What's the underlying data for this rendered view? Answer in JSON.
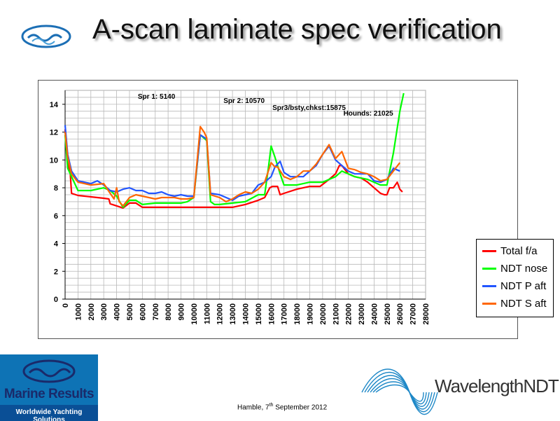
{
  "slide": {
    "title": "A-scan laminate spec verification",
    "footer": {
      "prefix": "Hamble, 7",
      "sup": "th",
      "suffix": " September 2012"
    }
  },
  "logos": {
    "marine_results": {
      "name": "Marine Results",
      "tagline": "Worldwide Yachting Solutions"
    },
    "wavelength": {
      "name": "WavelengthNDT"
    }
  },
  "chart_data": {
    "type": "line",
    "title": "",
    "xlabel": "",
    "ylabel": "",
    "xlim": [
      0,
      28000
    ],
    "ylim": [
      0,
      15
    ],
    "x_ticks": [
      0,
      1000,
      2000,
      3000,
      4000,
      5000,
      6000,
      7000,
      8000,
      9000,
      10000,
      11000,
      12000,
      13000,
      14000,
      15000,
      16000,
      17000,
      18000,
      19000,
      20000,
      21000,
      22000,
      23000,
      24000,
      25000,
      26000,
      27000,
      28000
    ],
    "y_ticks": [
      0,
      2,
      4,
      6,
      8,
      10,
      12,
      14
    ],
    "grid": true,
    "legend_position": "right",
    "annotations": [
      {
        "text": "Spr 1: 5140",
        "x": 7100,
        "y": 14.4
      },
      {
        "text": "Spr 2: 10570",
        "x": 13900,
        "y": 14.1
      },
      {
        "text": "Spr3/bsty,chkst:15875",
        "x": 18950,
        "y": 13.6
      },
      {
        "text": "Hounds: 21025",
        "x": 23550,
        "y": 13.2
      }
    ],
    "series": [
      {
        "name": "Total f/a",
        "color": "#ff0000",
        "x": [
          0,
          200,
          400,
          500,
          1000,
          2000,
          3000,
          3400,
          3500,
          4000,
          4500,
          5000,
          5500,
          6000,
          7000,
          8000,
          9000,
          10000,
          11000,
          12000,
          13000,
          14000,
          15000,
          15500,
          15900,
          16100,
          16500,
          16700,
          17000,
          18000,
          19000,
          19800,
          20500,
          21000,
          21300,
          21500,
          22000,
          22500,
          23000,
          23500,
          24000,
          24500,
          24800,
          25000,
          25200,
          25500,
          25800,
          26000,
          26200
        ],
        "y": [
          12.2,
          9.8,
          9.0,
          7.6,
          7.45,
          7.35,
          7.25,
          7.2,
          6.85,
          6.7,
          6.55,
          6.9,
          6.9,
          6.6,
          6.6,
          6.6,
          6.6,
          6.6,
          6.6,
          6.6,
          6.6,
          6.8,
          7.1,
          7.3,
          8.0,
          8.1,
          8.1,
          7.5,
          7.6,
          7.9,
          8.1,
          8.1,
          8.6,
          9.0,
          9.6,
          9.6,
          9.0,
          8.8,
          8.7,
          8.4,
          8.0,
          7.6,
          7.5,
          7.5,
          8.0,
          8.0,
          8.4,
          7.9,
          7.7
        ]
      },
      {
        "name": "NDT nose",
        "color": "#00ff00",
        "x": [
          0,
          200,
          500,
          1000,
          2000,
          3000,
          3500,
          4000,
          4300,
          4500,
          5000,
          5500,
          6000,
          7000,
          8000,
          9000,
          9500,
          10000,
          10500,
          11000,
          11300,
          11600,
          12000,
          13000,
          14000,
          15000,
          15500,
          15800,
          16000,
          16300,
          16700,
          17000,
          17500,
          18000,
          19000,
          20000,
          21000,
          21500,
          22000,
          22500,
          23000,
          23500,
          24000,
          24500,
          25000,
          25500,
          26000,
          26300
        ],
        "y": [
          11.8,
          9.4,
          8.8,
          7.8,
          7.8,
          8.0,
          7.8,
          7.4,
          6.9,
          6.6,
          7.1,
          7.1,
          6.8,
          6.9,
          6.9,
          6.9,
          7.0,
          7.3,
          11.8,
          11.4,
          7.0,
          6.8,
          6.8,
          6.9,
          7.0,
          7.5,
          7.5,
          9.5,
          11.0,
          10.2,
          9.0,
          8.2,
          8.2,
          8.2,
          8.4,
          8.4,
          8.8,
          9.2,
          9.0,
          8.8,
          8.7,
          8.6,
          8.4,
          8.2,
          8.2,
          10.5,
          13.5,
          14.8
        ]
      },
      {
        "name": "NDT P aft",
        "color": "#2255ff",
        "x": [
          0,
          200,
          500,
          1000,
          2000,
          2500,
          3000,
          3500,
          4000,
          4500,
          5000,
          5500,
          6000,
          6500,
          7000,
          7500,
          8000,
          8500,
          9000,
          9500,
          10000,
          10500,
          11000,
          11300,
          12000,
          13000,
          13500,
          14000,
          14500,
          15000,
          15500,
          16000,
          16300,
          16700,
          17000,
          17500,
          18000,
          18500,
          19000,
          19500,
          20000,
          20500,
          21000,
          21500,
          22000,
          22500,
          23000,
          23500,
          24000,
          24500,
          25000,
          25500,
          26000
        ],
        "y": [
          12.5,
          10.4,
          9.2,
          8.5,
          8.3,
          8.5,
          8.2,
          7.8,
          7.7,
          7.9,
          8.0,
          7.8,
          7.8,
          7.6,
          7.6,
          7.7,
          7.5,
          7.4,
          7.5,
          7.4,
          7.4,
          11.8,
          11.5,
          7.6,
          7.5,
          7.1,
          7.4,
          7.5,
          7.6,
          8.2,
          8.4,
          8.8,
          9.5,
          9.9,
          9.1,
          8.8,
          8.8,
          8.8,
          9.2,
          9.6,
          10.4,
          11.0,
          10.0,
          9.6,
          9.2,
          9.0,
          9.0,
          9.0,
          8.5,
          8.4,
          8.6,
          9.4,
          9.2
        ]
      },
      {
        "name": "NDT S aft",
        "color": "#ff6600",
        "x": [
          0,
          200,
          500,
          1000,
          1500,
          2000,
          3000,
          3500,
          3800,
          4000,
          4200,
          4500,
          5000,
          5500,
          6000,
          6500,
          7000,
          7500,
          8000,
          8500,
          9000,
          9500,
          10000,
          10500,
          10800,
          11000,
          11300,
          12000,
          12500,
          13000,
          13500,
          14000,
          14500,
          15000,
          15500,
          16000,
          16300,
          16500,
          17000,
          17500,
          18000,
          18500,
          19000,
          19500,
          20000,
          20500,
          21000,
          21500,
          22000,
          22500,
          23000,
          23500,
          24000,
          24500,
          25000,
          25500,
          26000
        ],
        "y": [
          12.0,
          10.2,
          9.0,
          8.4,
          8.3,
          8.2,
          8.3,
          7.6,
          7.2,
          8.0,
          7.0,
          6.7,
          7.3,
          7.5,
          7.4,
          7.3,
          7.2,
          7.3,
          7.3,
          7.3,
          7.2,
          7.2,
          7.3,
          12.4,
          12.0,
          11.6,
          7.5,
          7.3,
          7.0,
          7.2,
          7.5,
          7.7,
          7.6,
          7.9,
          8.4,
          9.8,
          9.5,
          9.5,
          8.8,
          8.6,
          8.8,
          9.2,
          9.2,
          9.7,
          10.4,
          11.1,
          10.1,
          10.6,
          9.4,
          9.3,
          9.1,
          9.0,
          8.8,
          8.5,
          8.6,
          9.2,
          9.8
        ]
      }
    ]
  }
}
